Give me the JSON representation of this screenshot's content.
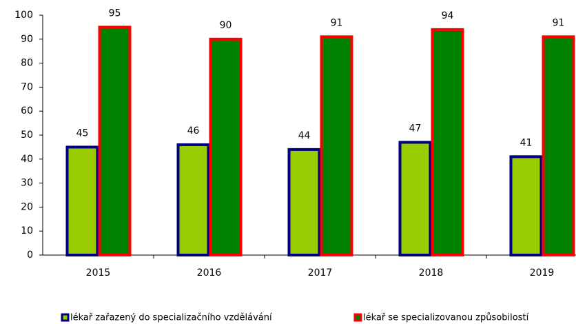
{
  "chart_data": {
    "type": "bar",
    "categories": [
      "2015",
      "2016",
      "2017",
      "2018",
      "2019"
    ],
    "series": [
      {
        "name": "lékař zařazený do specializačního vzdělávání",
        "color": "#99cc00",
        "edgecolor": "#000080",
        "values": [
          45,
          46,
          44,
          47,
          41
        ]
      },
      {
        "name": "lékař se specializovanou způsobilostí",
        "color": "#008000",
        "edgecolor": "#ff0000",
        "values": [
          95,
          90,
          91,
          94,
          91
        ]
      }
    ],
    "ylim": [
      0,
      100
    ],
    "yticks": [
      0,
      10,
      20,
      30,
      40,
      50,
      60,
      70,
      80,
      90,
      100
    ],
    "legend": "bottom"
  }
}
